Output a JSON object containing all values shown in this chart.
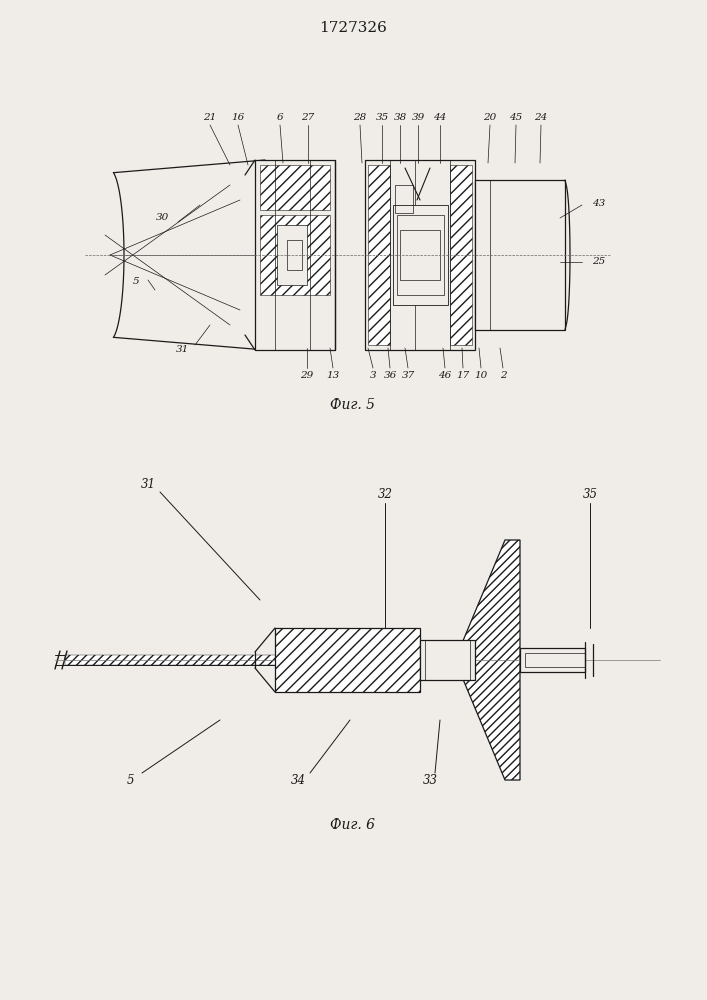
{
  "title": "1727326",
  "fig5_caption": "Фиг. 5",
  "fig6_caption": "Фиг. 6",
  "bg_color": "#f0ede8",
  "line_color": "#1a1a1a"
}
